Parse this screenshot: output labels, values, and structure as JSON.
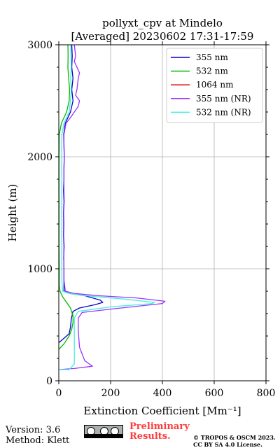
{
  "chart_data": {
    "type": "line",
    "title": "pollyxt_cpv at Mindelo",
    "subtitle": "[Averaged] 20230602 17:31-17:59",
    "xlabel": "Extinction Coefficient [Mm⁻¹]",
    "ylabel": "Height (m)",
    "xlim": [
      0,
      800
    ],
    "ylim": [
      0,
      3000
    ],
    "xticks": [
      "0",
      "200",
      "400",
      "600",
      "800"
    ],
    "yticks": [
      "0",
      "1000",
      "2000",
      "3000"
    ],
    "grid": true,
    "legend_position": "top-right",
    "series": [
      {
        "name": "355 nm",
        "color": "#0000cc",
        "points": [
          [
            0,
            340
          ],
          [
            20,
            380
          ],
          [
            40,
            420
          ],
          [
            45,
            480
          ],
          [
            48,
            550
          ],
          [
            55,
            620
          ],
          [
            80,
            650
          ],
          [
            140,
            680
          ],
          [
            170,
            700
          ],
          [
            160,
            720
          ],
          [
            100,
            760
          ],
          [
            40,
            780
          ],
          [
            20,
            800
          ],
          [
            20,
            900
          ],
          [
            20,
            1000
          ],
          [
            19,
            1100
          ],
          [
            20,
            1200
          ],
          [
            18,
            1300
          ],
          [
            19,
            1400
          ],
          [
            18,
            1500
          ],
          [
            20,
            1600
          ],
          [
            18,
            1700
          ],
          [
            20,
            1800
          ],
          [
            20,
            1900
          ],
          [
            21,
            2000
          ],
          [
            20,
            2100
          ],
          [
            19,
            2200
          ],
          [
            25,
            2300
          ],
          [
            35,
            2350
          ],
          [
            45,
            2400
          ],
          [
            55,
            2500
          ],
          [
            50,
            2600
          ],
          [
            55,
            2700
          ],
          [
            50,
            2800
          ],
          [
            52,
            2900
          ],
          [
            50,
            3000
          ]
        ]
      },
      {
        "name": "532 nm",
        "color": "#00bb00",
        "points": [
          [
            0,
            280
          ],
          [
            20,
            330
          ],
          [
            40,
            400
          ],
          [
            50,
            460
          ],
          [
            55,
            520
          ],
          [
            55,
            580
          ],
          [
            45,
            650
          ],
          [
            30,
            700
          ],
          [
            15,
            750
          ],
          [
            5,
            800
          ],
          [
            2,
            850
          ],
          [
            2,
            900
          ],
          [
            2,
            1000
          ],
          [
            1,
            1200
          ],
          [
            1,
            1400
          ],
          [
            1,
            1600
          ],
          [
            1,
            1800
          ],
          [
            1,
            2000
          ],
          [
            2,
            2200
          ],
          [
            10,
            2300
          ],
          [
            20,
            2350
          ],
          [
            30,
            2400
          ],
          [
            40,
            2500
          ],
          [
            42,
            2600
          ],
          [
            38,
            2700
          ],
          [
            35,
            2800
          ],
          [
            36,
            2900
          ],
          [
            35,
            3000
          ]
        ]
      },
      {
        "name": "1064 nm",
        "color": "#dd0000",
        "points": []
      },
      {
        "name": "355 nm (NR)",
        "color": "#9933ff",
        "points": [
          [
            0,
            100
          ],
          [
            60,
            110
          ],
          [
            130,
            130
          ],
          [
            100,
            180
          ],
          [
            80,
            300
          ],
          [
            75,
            450
          ],
          [
            75,
            560
          ],
          [
            90,
            610
          ],
          [
            200,
            640
          ],
          [
            400,
            690
          ],
          [
            410,
            710
          ],
          [
            300,
            740
          ],
          [
            150,
            760
          ],
          [
            60,
            780
          ],
          [
            25,
            800
          ],
          [
            20,
            900
          ],
          [
            20,
            1000
          ],
          [
            19,
            1100
          ],
          [
            21,
            1200
          ],
          [
            19,
            1300
          ],
          [
            20,
            1400
          ],
          [
            19,
            1500
          ],
          [
            21,
            1600
          ],
          [
            20,
            1700
          ],
          [
            20,
            1800
          ],
          [
            20,
            1900
          ],
          [
            21,
            2000
          ],
          [
            20,
            2100
          ],
          [
            20,
            2200
          ],
          [
            28,
            2300
          ],
          [
            45,
            2350
          ],
          [
            60,
            2400
          ],
          [
            75,
            2450
          ],
          [
            80,
            2500
          ],
          [
            65,
            2550
          ],
          [
            70,
            2600
          ],
          [
            75,
            2700
          ],
          [
            80,
            2750
          ],
          [
            70,
            2800
          ],
          [
            60,
            2850
          ],
          [
            65,
            2900
          ],
          [
            60,
            3000
          ]
        ]
      },
      {
        "name": "532 nm (NR)",
        "color": "#44eedd",
        "points": [
          [
            0,
            100
          ],
          [
            40,
            100
          ],
          [
            60,
            150
          ],
          [
            60,
            300
          ],
          [
            60,
            450
          ],
          [
            60,
            560
          ],
          [
            75,
            620
          ],
          [
            200,
            660
          ],
          [
            360,
            690
          ],
          [
            370,
            700
          ],
          [
            250,
            730
          ],
          [
            100,
            760
          ],
          [
            40,
            780
          ],
          [
            15,
            800
          ],
          [
            12,
            900
          ],
          [
            12,
            1000
          ],
          [
            11,
            1100
          ],
          [
            12,
            1200
          ],
          [
            11,
            1300
          ],
          [
            12,
            1400
          ],
          [
            11,
            1500
          ],
          [
            12,
            1600
          ],
          [
            11,
            1700
          ],
          [
            12,
            1800
          ],
          [
            11,
            1900
          ],
          [
            12,
            2000
          ],
          [
            11,
            2100
          ],
          [
            12,
            2200
          ],
          [
            20,
            2300
          ],
          [
            30,
            2350
          ],
          [
            40,
            2400
          ],
          [
            45,
            2500
          ],
          [
            48,
            2600
          ],
          [
            46,
            2700
          ],
          [
            48,
            2800
          ],
          [
            47,
            2900
          ],
          [
            46,
            3000
          ]
        ]
      }
    ]
  },
  "footer": {
    "version": "Version: 3.6",
    "method": "Method: Klett",
    "prelim_line1": "Preliminary",
    "prelim_line2": "Results.",
    "license_line1": "© TROPOS & OSCM 2023.",
    "license_line2": "CC BY SA 4.0 License."
  }
}
